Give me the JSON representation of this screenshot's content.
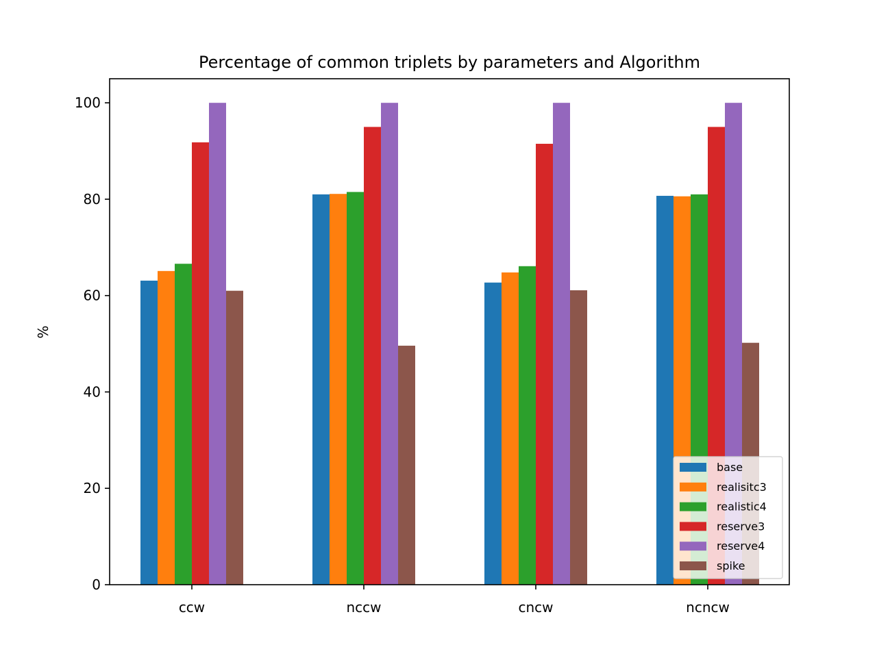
{
  "chart_data": {
    "type": "bar",
    "title": "Percentage of common triplets by parameters and Algorithm",
    "xlabel": "",
    "ylabel": "%",
    "ylim": [
      0,
      105
    ],
    "yticks": [
      0,
      20,
      40,
      60,
      80,
      100
    ],
    "categories": [
      "ccw",
      "nccw",
      "cncw",
      "ncncw"
    ],
    "series": [
      {
        "name": "base",
        "color": "#1f77b4",
        "values": [
          63.1,
          81.0,
          62.7,
          80.7
        ]
      },
      {
        "name": "realisitc3",
        "color": "#ff7f0e",
        "values": [
          65.1,
          81.1,
          64.8,
          80.6
        ]
      },
      {
        "name": "realistic4",
        "color": "#2ca02c",
        "values": [
          66.6,
          81.5,
          66.1,
          81.0
        ]
      },
      {
        "name": "reserve3",
        "color": "#d62728",
        "values": [
          91.8,
          95.0,
          91.5,
          95.0
        ]
      },
      {
        "name": "reserve4",
        "color": "#9467bd",
        "values": [
          100.0,
          100.0,
          100.0,
          100.0
        ]
      },
      {
        "name": "spike",
        "color": "#8c564b",
        "values": [
          61.0,
          49.6,
          61.1,
          50.2
        ]
      }
    ],
    "legend_position": "bottom-right",
    "grid": false
  }
}
